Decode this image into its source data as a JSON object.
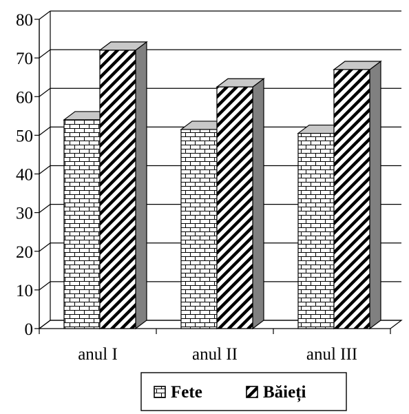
{
  "chart_data": {
    "type": "bar",
    "title": "",
    "xlabel": "",
    "ylabel": "",
    "categories": [
      "anul I",
      "anul II",
      "anul III"
    ],
    "series": [
      {
        "name": "Fete",
        "values": [
          54,
          51.5,
          50.5
        ]
      },
      {
        "name": "Băieți",
        "values": [
          72,
          62.5,
          67
        ]
      }
    ],
    "ylim": [
      0,
      80
    ],
    "yticks": [
      "0",
      "10",
      "20",
      "30",
      "40",
      "50",
      "60",
      "70",
      "80"
    ],
    "grid": true,
    "three_d": true,
    "legend_position": "bottom-center",
    "colors": {
      "background": "#ffffff",
      "lines": "#000000",
      "top_face": "#c8c8c8",
      "side_face": "#808080"
    }
  }
}
